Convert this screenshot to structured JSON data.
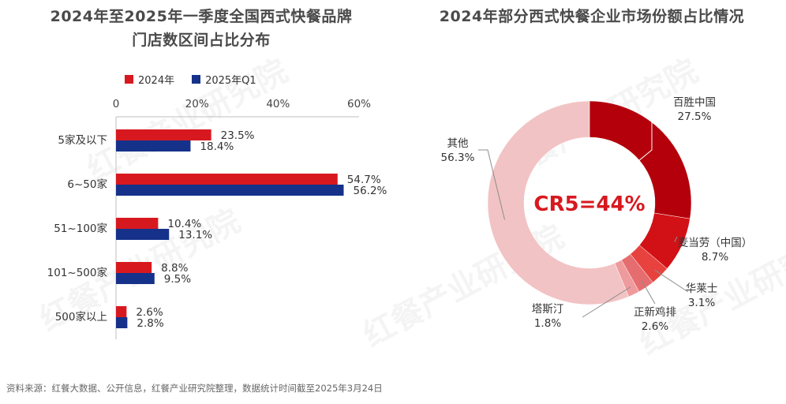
{
  "left_chart": {
    "title_line1": "2024年至2025年一季度全国西式快餐品牌",
    "title_line2": "门店数区间占比分布"
  },
  "right_chart": {
    "title": "2024年部分西式快餐企业市场份额占比情况",
    "center_label": "CR5=44%"
  },
  "footer": "资料来源：红餐大数据、公开信息，红餐产业研究院整理，数据统计时间截至2025年3月24日",
  "watermark": "红餐产业研究院",
  "colors": {
    "series_2024": "#d7191f",
    "series_2025": "#15318a",
    "donut": [
      "#b3000b",
      "#d21116",
      "#e8423f",
      "#e66d6f",
      "#ef9a9c",
      "#f2c3c4"
    ]
  },
  "chart_data": [
    {
      "type": "bar",
      "orientation": "horizontal",
      "categories": [
        "5家及以下",
        "6~50家",
        "51~100家",
        "101~500家",
        "500家以上"
      ],
      "series": [
        {
          "name": "2024年",
          "values": [
            23.5,
            54.7,
            10.4,
            8.8,
            2.6
          ],
          "labels": [
            "23.5%",
            "54.7%",
            "10.4%",
            "8.8%",
            "2.6%"
          ]
        },
        {
          "name": "2025年Q1",
          "values": [
            18.4,
            56.2,
            13.1,
            9.5,
            2.8
          ],
          "labels": [
            "18.4%",
            "56.2%",
            "13.1%",
            "9.5%",
            "2.8%"
          ]
        }
      ],
      "xlim": [
        0,
        60
      ],
      "xticks": [
        "0",
        "20%",
        "40%",
        "60%"
      ],
      "legend_position": "top"
    },
    {
      "type": "pie",
      "donut": true,
      "slices": [
        {
          "name": "百胜中国",
          "value": 27.5,
          "label": "27.5%"
        },
        {
          "name": "麦当劳（中国）",
          "value": 8.7,
          "label": "8.7%"
        },
        {
          "name": "华莱士",
          "value": 3.1,
          "label": "3.1%"
        },
        {
          "name": "正新鸡排",
          "value": 2.6,
          "label": "2.6%"
        },
        {
          "name": "塔斯汀",
          "value": 1.8,
          "label": "1.8%"
        },
        {
          "name": "其他",
          "value": 56.3,
          "label": "56.3%"
        }
      ]
    }
  ]
}
